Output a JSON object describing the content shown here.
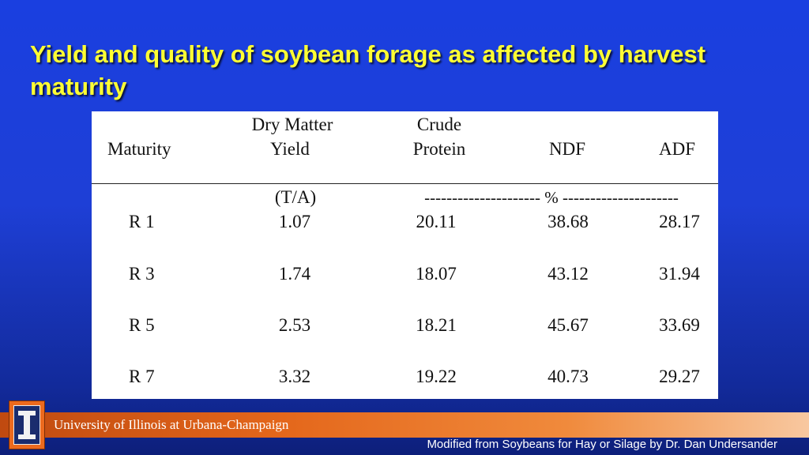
{
  "slide": {
    "title": "Yield and quality of soybean forage as affected by harvest maturity"
  },
  "table": {
    "headers": {
      "maturity": "Maturity",
      "dm_line1": "Dry Matter",
      "dm_line2": "Yield",
      "cp_line1": "Crude",
      "cp_line2": "Protein",
      "ndf": "NDF",
      "adf": "ADF"
    },
    "units": {
      "yield": "(T/A)",
      "percent": "--------------------- % ---------------------"
    },
    "rows": [
      {
        "maturity": "R 1",
        "yield": "1.07",
        "protein": "20.11",
        "ndf": "38.68",
        "adf": "28.17"
      },
      {
        "maturity": "R 3",
        "yield": "1.74",
        "protein": "18.07",
        "ndf": "43.12",
        "adf": "31.94"
      },
      {
        "maturity": "R 5",
        "yield": "2.53",
        "protein": "18.21",
        "ndf": "45.67",
        "adf": "33.69"
      },
      {
        "maturity": "R 7",
        "yield": "3.32",
        "protein": "19.22",
        "ndf": "40.73",
        "adf": "29.27"
      }
    ]
  },
  "footer": {
    "institution": "University of Illinois at Urbana-Champaign",
    "credit": "Modified from Soybeans for Hay or Silage by Dr. Dan Undersander"
  },
  "colors": {
    "title": "#ffff33",
    "background": "#1a3fe0",
    "footer_band": "#e4671b"
  },
  "icons": {
    "logo": "illinois-block-i-logo"
  }
}
